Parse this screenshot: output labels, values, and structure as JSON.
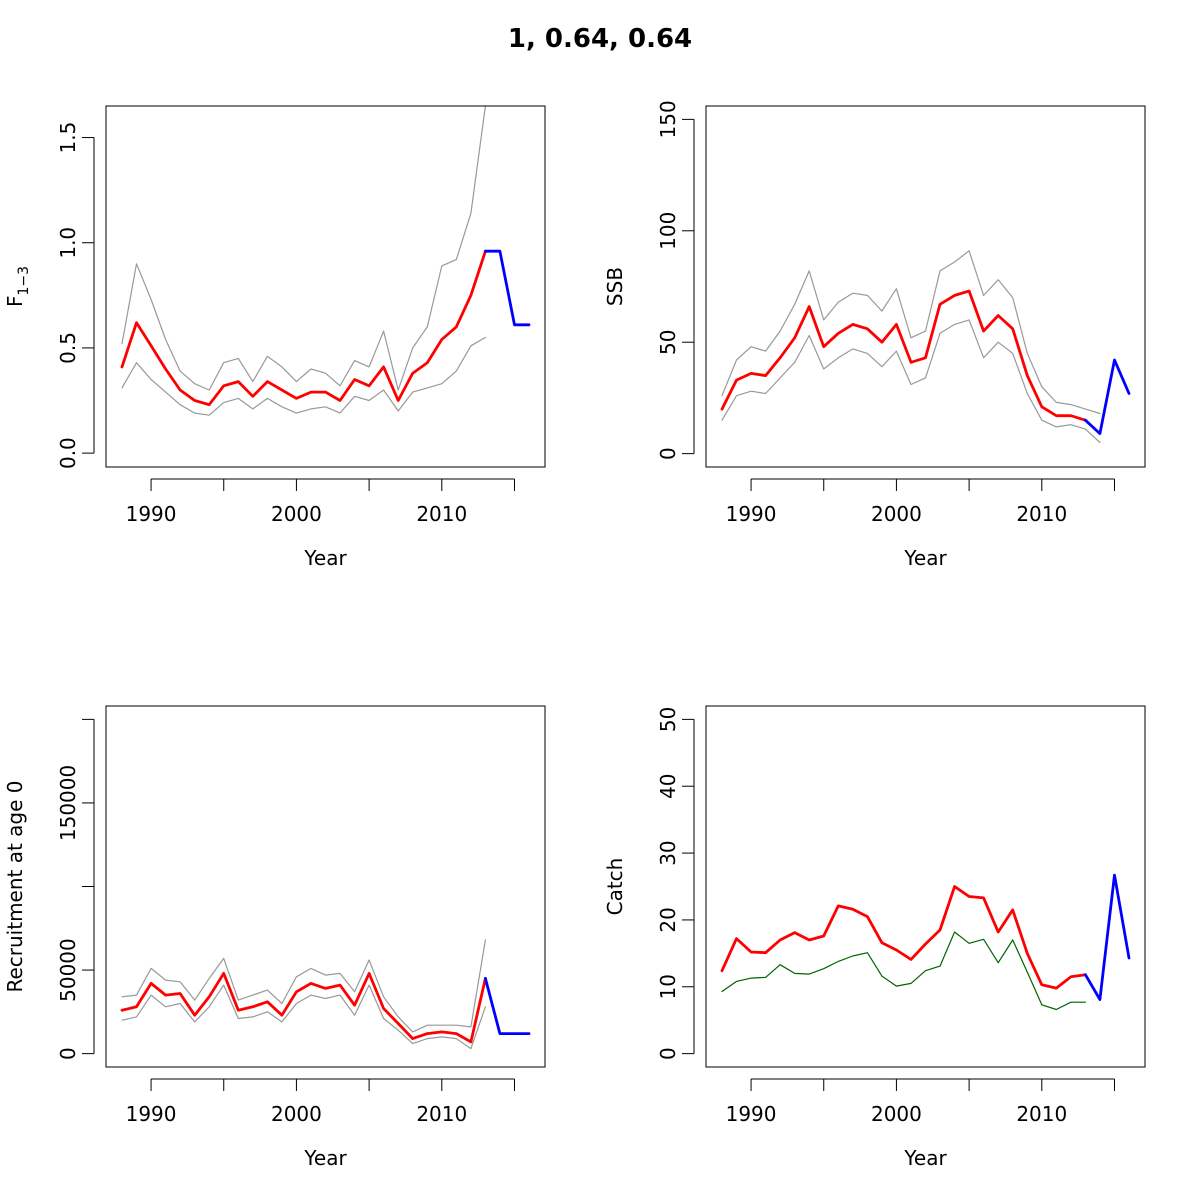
{
  "title": "1, 0.64, 0.64",
  "colors": {
    "estimate": "#ff0000",
    "ci": "#999999",
    "forecast": "#0000ff",
    "observed": "#006400"
  },
  "chart_data": [
    {
      "id": "f",
      "type": "line",
      "xlabel": "Year",
      "ylabel_main": "F",
      "ylabel_sub": "1−3",
      "xlim": [
        1986.9,
        2017.1
      ],
      "ylim": [
        -0.066,
        1.65
      ],
      "xticks": [
        1990,
        1995,
        2000,
        2005,
        2010,
        2015
      ],
      "xtick_labels": [
        "1990",
        "",
        "2000",
        "",
        "2010",
        ""
      ],
      "yticks": [
        0.0,
        0.5,
        1.0,
        1.5
      ],
      "ytick_labels": [
        "0.0",
        "0.5",
        "1.0",
        "1.5"
      ],
      "series": [
        {
          "role": "upper",
          "x": [
            1988,
            1989,
            1990,
            1991,
            1992,
            1993,
            1994,
            1995,
            1996,
            1997,
            1998,
            1999,
            2000,
            2001,
            2002,
            2003,
            2004,
            2005,
            2006,
            2007,
            2008,
            2009,
            2010,
            2011,
            2012,
            2013
          ],
          "values": [
            0.52,
            0.9,
            0.73,
            0.54,
            0.39,
            0.33,
            0.3,
            0.43,
            0.45,
            0.34,
            0.46,
            0.41,
            0.34,
            0.4,
            0.38,
            0.32,
            0.44,
            0.41,
            0.58,
            0.3,
            0.5,
            0.6,
            0.89,
            0.92,
            1.14,
            1.65
          ]
        },
        {
          "role": "estimate",
          "x": [
            1988,
            1989,
            1990,
            1991,
            1992,
            1993,
            1994,
            1995,
            1996,
            1997,
            1998,
            1999,
            2000,
            2001,
            2002,
            2003,
            2004,
            2005,
            2006,
            2007,
            2008,
            2009,
            2010,
            2011,
            2012,
            2013
          ],
          "values": [
            0.41,
            0.62,
            0.51,
            0.4,
            0.3,
            0.25,
            0.23,
            0.32,
            0.34,
            0.27,
            0.34,
            0.3,
            0.26,
            0.29,
            0.29,
            0.25,
            0.35,
            0.32,
            0.41,
            0.25,
            0.38,
            0.43,
            0.54,
            0.6,
            0.75,
            0.96
          ]
        },
        {
          "role": "lower",
          "x": [
            1988,
            1989,
            1990,
            1991,
            1992,
            1993,
            1994,
            1995,
            1996,
            1997,
            1998,
            1999,
            2000,
            2001,
            2002,
            2003,
            2004,
            2005,
            2006,
            2007,
            2008,
            2009,
            2010,
            2011,
            2012,
            2013
          ],
          "values": [
            0.31,
            0.43,
            0.35,
            0.29,
            0.23,
            0.19,
            0.18,
            0.24,
            0.26,
            0.21,
            0.26,
            0.22,
            0.19,
            0.21,
            0.22,
            0.19,
            0.27,
            0.25,
            0.3,
            0.2,
            0.29,
            0.31,
            0.33,
            0.39,
            0.51,
            0.55
          ]
        },
        {
          "role": "forecast",
          "x": [
            2013,
            2014,
            2015,
            2016
          ],
          "values": [
            0.96,
            0.96,
            0.61,
            0.61
          ]
        }
      ]
    },
    {
      "id": "ssb",
      "type": "line",
      "xlabel": "Year",
      "ylabel_main": "SSB",
      "xlim": [
        1986.9,
        2017.1
      ],
      "ylim": [
        -6,
        156
      ],
      "xticks": [
        1990,
        1995,
        2000,
        2005,
        2010,
        2015
      ],
      "xtick_labels": [
        "1990",
        "",
        "2000",
        "",
        "2010",
        ""
      ],
      "yticks": [
        0,
        50,
        100,
        150
      ],
      "ytick_labels": [
        "0",
        "50",
        "100",
        "150"
      ],
      "series": [
        {
          "role": "upper",
          "x": [
            1988,
            1989,
            1990,
            1991,
            1992,
            1993,
            1994,
            1995,
            1996,
            1997,
            1998,
            1999,
            2000,
            2001,
            2002,
            2003,
            2004,
            2005,
            2006,
            2007,
            2008,
            2009,
            2010,
            2011,
            2012,
            2013,
            2014
          ],
          "values": [
            26,
            42,
            48,
            46,
            55,
            67,
            82,
            60,
            68,
            72,
            71,
            64,
            74,
            52,
            55,
            82,
            86,
            91,
            71,
            78,
            70,
            45,
            30,
            23,
            22,
            20,
            18
          ]
        },
        {
          "role": "estimate",
          "x": [
            1988,
            1989,
            1990,
            1991,
            1992,
            1993,
            1994,
            1995,
            1996,
            1997,
            1998,
            1999,
            2000,
            2001,
            2002,
            2003,
            2004,
            2005,
            2006,
            2007,
            2008,
            2009,
            2010,
            2011,
            2012,
            2013
          ],
          "values": [
            20,
            33,
            36,
            35,
            43,
            52,
            66,
            48,
            54,
            58,
            56,
            50,
            58,
            41,
            43,
            67,
            71,
            73,
            55,
            62,
            56,
            35,
            21,
            17,
            17,
            15
          ]
        },
        {
          "role": "lower",
          "x": [
            1988,
            1989,
            1990,
            1991,
            1992,
            1993,
            1994,
            1995,
            1996,
            1997,
            1998,
            1999,
            2000,
            2001,
            2002,
            2003,
            2004,
            2005,
            2006,
            2007,
            2008,
            2009,
            2010,
            2011,
            2012,
            2013,
            2014
          ],
          "values": [
            15,
            26,
            28,
            27,
            34,
            41,
            53,
            38,
            43,
            47,
            45,
            39,
            46,
            31,
            34,
            54,
            58,
            60,
            43,
            50,
            45,
            27,
            15,
            12,
            13,
            11,
            5
          ]
        },
        {
          "role": "forecast",
          "x": [
            2013,
            2014,
            2015,
            2016
          ],
          "values": [
            15,
            9,
            42,
            27
          ]
        }
      ]
    },
    {
      "id": "recruitment",
      "type": "line",
      "xlabel": "Year",
      "ylabel_main": "Recruitment at age 0",
      "xlim": [
        1986.9,
        2017.1
      ],
      "ylim": [
        -8000,
        208000
      ],
      "xticks": [
        1990,
        1995,
        2000,
        2005,
        2010,
        2015
      ],
      "xtick_labels": [
        "1990",
        "",
        "2000",
        "",
        "2010",
        ""
      ],
      "yticks": [
        0,
        50000,
        100000,
        150000,
        200000
      ],
      "ytick_labels": [
        "0",
        "50000",
        "",
        "150000",
        ""
      ],
      "series": [
        {
          "role": "upper",
          "x": [
            1988,
            1989,
            1990,
            1991,
            1992,
            1993,
            1994,
            1995,
            1996,
            1997,
            1998,
            1999,
            2000,
            2001,
            2002,
            2003,
            2004,
            2005,
            2006,
            2007,
            2008,
            2009,
            2010,
            2011,
            2012,
            2013
          ],
          "values": [
            34000,
            35000,
            51000,
            44000,
            43000,
            32000,
            45000,
            57000,
            32000,
            35000,
            38000,
            30000,
            46000,
            51000,
            47000,
            48000,
            37000,
            56000,
            34000,
            22000,
            13000,
            17000,
            17000,
            17000,
            16000,
            68000
          ]
        },
        {
          "role": "estimate",
          "x": [
            1988,
            1989,
            1990,
            1991,
            1992,
            1993,
            1994,
            1995,
            1996,
            1997,
            1998,
            1999,
            2000,
            2001,
            2002,
            2003,
            2004,
            2005,
            2006,
            2007,
            2008,
            2009,
            2010,
            2011,
            2012,
            2013
          ],
          "values": [
            26000,
            28000,
            42000,
            35000,
            36000,
            23000,
            34000,
            48000,
            26000,
            28000,
            31000,
            23000,
            37000,
            42000,
            39000,
            41000,
            29000,
            48000,
            27000,
            18000,
            9000,
            12000,
            13000,
            12000,
            7000,
            45000
          ]
        },
        {
          "role": "lower",
          "x": [
            1988,
            1989,
            1990,
            1991,
            1992,
            1993,
            1994,
            1995,
            1996,
            1997,
            1998,
            1999,
            2000,
            2001,
            2002,
            2003,
            2004,
            2005,
            2006,
            2007,
            2008,
            2009,
            2010,
            2011,
            2012,
            2013
          ],
          "values": [
            20000,
            22000,
            35000,
            28000,
            30000,
            19000,
            28000,
            41000,
            21000,
            22000,
            25000,
            19000,
            30000,
            35000,
            33000,
            35000,
            23000,
            41000,
            21000,
            14000,
            6000,
            9000,
            10000,
            9000,
            3000,
            28000
          ]
        },
        {
          "role": "forecast",
          "x": [
            2013,
            2014,
            2015,
            2016
          ],
          "values": [
            45000,
            12000,
            12000,
            12000
          ]
        }
      ]
    },
    {
      "id": "catch",
      "type": "line",
      "xlabel": "Year",
      "ylabel_main": "Catch",
      "xlim": [
        1986.9,
        2017.1
      ],
      "ylim": [
        -2,
        52
      ],
      "xticks": [
        1990,
        1995,
        2000,
        2005,
        2010,
        2015
      ],
      "xtick_labels": [
        "1990",
        "",
        "2000",
        "",
        "2010",
        ""
      ],
      "yticks": [
        0,
        10,
        20,
        30,
        40,
        50
      ],
      "ytick_labels": [
        "0",
        "10",
        "20",
        "30",
        "40",
        "50"
      ],
      "series": [
        {
          "role": "estimate",
          "x": [
            1988,
            1989,
            1990,
            1991,
            1992,
            1993,
            1994,
            1995,
            1996,
            1997,
            1998,
            1999,
            2000,
            2001,
            2002,
            2003,
            2004,
            2005,
            2006,
            2007,
            2008,
            2009,
            2010,
            2011,
            2012,
            2013
          ],
          "values": [
            12.4,
            17.2,
            15.2,
            15.1,
            17.0,
            18.1,
            17.0,
            17.6,
            22.1,
            21.6,
            20.5,
            16.6,
            15.5,
            14.1,
            16.4,
            18.5,
            25.0,
            23.5,
            23.3,
            18.2,
            21.5,
            15.0,
            10.3,
            9.8,
            11.5,
            11.8
          ]
        },
        {
          "role": "observed",
          "x": [
            1988,
            1989,
            1990,
            1991,
            1992,
            1993,
            1994,
            1995,
            1996,
            1997,
            1998,
            1999,
            2000,
            2001,
            2002,
            2003,
            2004,
            2005,
            2006,
            2007,
            2008,
            2009,
            2010,
            2011,
            2012,
            2013
          ],
          "values": [
            9.3,
            10.8,
            11.3,
            11.4,
            13.3,
            12.0,
            11.9,
            12.7,
            13.8,
            14.6,
            15.1,
            11.6,
            10.1,
            10.5,
            12.4,
            13.1,
            18.2,
            16.5,
            17.1,
            13.6,
            17.0,
            12.2,
            7.3,
            6.6,
            7.7,
            7.7
          ]
        },
        {
          "role": "forecast",
          "x": [
            2013,
            2014,
            2015,
            2016
          ],
          "values": [
            11.8,
            8.1,
            26.7,
            14.3
          ]
        }
      ]
    }
  ]
}
